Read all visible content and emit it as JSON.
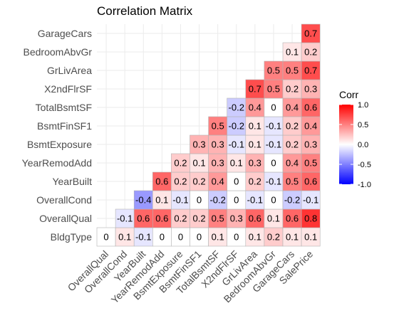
{
  "chart_data": {
    "type": "heatmap",
    "title": "Correlation Matrix",
    "xlabel": "",
    "ylabel": "",
    "variables": [
      "BldgType",
      "OverallQual",
      "OverallCond",
      "YearBuilt",
      "YearRemodAdd",
      "BsmtExposure",
      "BsmtFinSF1",
      "TotalBsmtSF",
      "X2ndFlrSF",
      "GrLivArea",
      "BedroomAbvGr",
      "GarageCars",
      "SalePrice"
    ],
    "x_tick_labels": [
      "OverallQual",
      "OverallCond",
      "YearBuilt",
      "YearRemodAdd",
      "BsmtExposure",
      "BsmtFinSF1",
      "TotalBsmtSF",
      "X2ndFlrSF",
      "GrLivArea",
      "BedroomAbvGr",
      "GarageCars",
      "SalePrice"
    ],
    "y_tick_labels": [
      "BldgType",
      "OverallQual",
      "OverallCond",
      "YearBuilt",
      "YearRemodAdd",
      "BsmtExposure",
      "BsmtFinSF1",
      "TotalBsmtSF",
      "X2ndFlrSF",
      "GrLivArea",
      "BedroomAbvGr",
      "GarageCars"
    ],
    "rows": [
      {
        "row": "BldgType",
        "values": [
          0,
          0.1,
          -0.1,
          0,
          0,
          0,
          0.1,
          0,
          0.1,
          0.2,
          0.1,
          0.1
        ]
      },
      {
        "row": "OverallQual",
        "values": [
          -0.1,
          0.6,
          0.6,
          0.2,
          0.2,
          0.5,
          0.3,
          0.6,
          0.1,
          0.6,
          0.8
        ]
      },
      {
        "row": "OverallCond",
        "values": [
          -0.4,
          0.1,
          -0.1,
          0,
          -0.2,
          0,
          -0.1,
          0,
          -0.2,
          -0.1
        ]
      },
      {
        "row": "YearBuilt",
        "values": [
          0.6,
          0.2,
          0.2,
          0.4,
          0,
          0.2,
          -0.1,
          0.5,
          0.6
        ]
      },
      {
        "row": "YearRemodAdd",
        "values": [
          0.2,
          0.1,
          0.3,
          0.1,
          0.3,
          0,
          0.4,
          0.5
        ]
      },
      {
        "row": "BsmtExposure",
        "values": [
          0.3,
          0.3,
          -0.1,
          0.1,
          -0.1,
          0.2,
          0.3
        ]
      },
      {
        "row": "BsmtFinSF1",
        "values": [
          0.5,
          -0.2,
          0.1,
          -0.1,
          0.2,
          0.4
        ]
      },
      {
        "row": "TotalBsmtSF",
        "values": [
          -0.2,
          0.4,
          0,
          0.4,
          0.6
        ]
      },
      {
        "row": "X2ndFlrSF",
        "values": [
          0.7,
          0.5,
          0.2,
          0.3
        ]
      },
      {
        "row": "GrLivArea",
        "values": [
          0.5,
          0.5,
          0.7
        ]
      },
      {
        "row": "BedroomAbvGr",
        "values": [
          0.1,
          0.2
        ]
      },
      {
        "row": "GarageCars",
        "values": [
          0.7
        ]
      }
    ],
    "color_scale": {
      "low": "#0000ff",
      "mid": "#ffffff",
      "high": "#ff0000",
      "limits": [
        -1,
        1
      ]
    },
    "legend": {
      "title": "Corr",
      "ticks": [
        "1.0",
        "0.5",
        "0.0",
        "-0.5",
        "-1.0"
      ],
      "tick_values": [
        1,
        0.5,
        0,
        -0.5,
        -1
      ],
      "position": "right"
    },
    "grid": true
  }
}
